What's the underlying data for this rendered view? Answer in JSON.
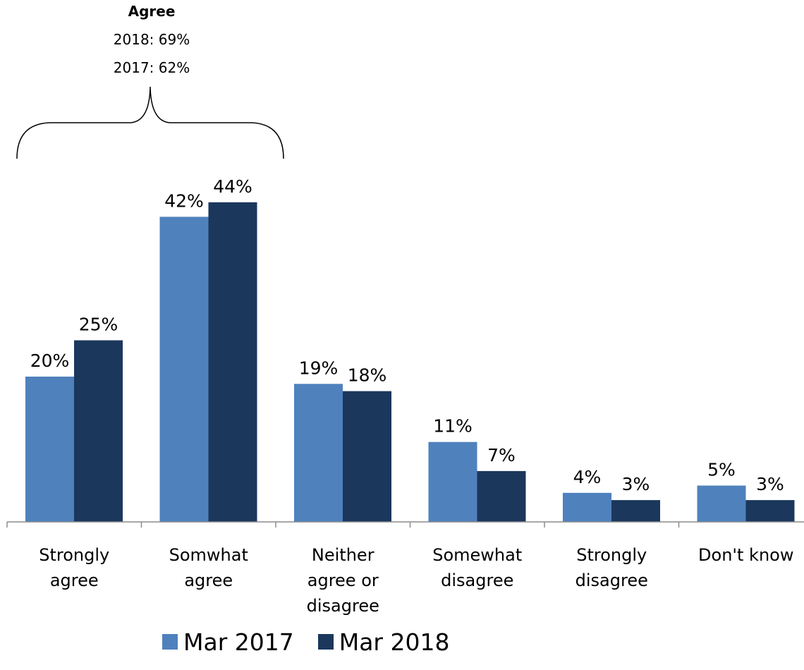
{
  "annotation": {
    "title": "Agree",
    "line1": "2018: 69%",
    "line2": "2017: 62%"
  },
  "chart_data": {
    "type": "bar",
    "categories": [
      [
        "Strongly",
        "agree"
      ],
      [
        "Somwhat",
        "agree"
      ],
      [
        "Neither",
        "agree or",
        "disagree"
      ],
      [
        "Somewhat",
        "disagree"
      ],
      [
        "Strongly",
        "disagree"
      ],
      [
        "Don't know"
      ]
    ],
    "series": [
      {
        "name": "Mar 2017",
        "color": "#4f81bd",
        "values": [
          20,
          42,
          19,
          11,
          4,
          5
        ],
        "labels": [
          "20%",
          "42%",
          "19%",
          "11%",
          "4%",
          "5%"
        ]
      },
      {
        "name": "Mar 2018",
        "color": "#1b375c",
        "values": [
          25,
          44,
          18,
          7,
          3,
          3
        ],
        "labels": [
          "25%",
          "44%",
          "18%",
          "7%",
          "3%",
          "3%"
        ]
      }
    ],
    "ylim": [
      0,
      44
    ],
    "grid": false,
    "legend_position": "bottom"
  }
}
